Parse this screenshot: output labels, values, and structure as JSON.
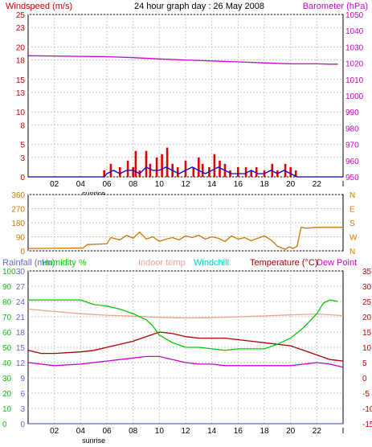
{
  "chart_data": [
    {
      "type": "bar",
      "title": "24 hour graph day : 26 May 2008",
      "ylabel": "Windspeed (m/s)",
      "y2label": "Barometer (hPa)",
      "xlim": [
        0,
        24
      ],
      "ylim": [
        0,
        25
      ],
      "y2lim": [
        950,
        1050
      ],
      "x_ticks": [
        "02",
        "04",
        "06",
        "08",
        "10",
        "12",
        "14",
        "16",
        "18",
        "20",
        "22"
      ],
      "x_tick_values": [
        2,
        4,
        6,
        8,
        10,
        12,
        14,
        16,
        18,
        20,
        22
      ],
      "x_end_label": "I",
      "y_ticks": [
        0,
        3,
        5,
        8,
        10,
        13,
        15,
        18,
        20,
        23,
        25
      ],
      "y2_ticks": [
        950,
        960,
        970,
        980,
        990,
        1000,
        1010,
        1020,
        1030,
        1040,
        1050
      ],
      "grid": true,
      "sunrise_label": "sunrise",
      "sunrise_hour": 5,
      "colors": {
        "gust": "#dd0000",
        "wind": "#0000cc",
        "barometer": "#cc00cc",
        "left_axis": "#cc0000",
        "right_axis": "#cc00cc"
      },
      "series": [
        {
          "name": "Barometer (hPa)",
          "axis": "right",
          "x": [
            0,
            2,
            4,
            6,
            8,
            10,
            12,
            14,
            16,
            18,
            19,
            20,
            21,
            22,
            23,
            23.6
          ],
          "values": [
            1024.6,
            1024.4,
            1024.2,
            1024,
            1023.4,
            1022.6,
            1022,
            1021.4,
            1020.8,
            1020.2,
            1019.9,
            1019.6,
            1019.6,
            1019.6,
            1019.4,
            1019.4
          ]
        },
        {
          "name": "Gust",
          "x": [
            5.8,
            6.3,
            7.0,
            7.6,
            8.0,
            8.2,
            8.5,
            9.0,
            9.3,
            9.8,
            10.2,
            10.6,
            11.0,
            11.4,
            12.0,
            12.6,
            13.0,
            13.3,
            13.8,
            14.2,
            14.6,
            15.0,
            15.4,
            16.0,
            16.6,
            17.0,
            17.4,
            18.0,
            18.6,
            19.0,
            19.6,
            20.0,
            20.4
          ],
          "values": [
            1,
            2,
            1.5,
            2.5,
            1.5,
            4,
            1,
            4,
            2,
            3,
            3.5,
            4.5,
            2,
            1.5,
            2.5,
            1.5,
            3,
            2,
            1.5,
            3.5,
            2.5,
            2,
            1,
            1.5,
            1.5,
            1,
            1.5,
            1,
            2,
            1,
            2,
            1.5,
            1
          ]
        },
        {
          "name": "Wind",
          "x": [
            0,
            5.8,
            6.0,
            6.5,
            7.0,
            7.5,
            8.0,
            8.5,
            9.0,
            9.5,
            10.0,
            10.5,
            11.0,
            11.5,
            12.0,
            12.5,
            13.0,
            13.5,
            14.0,
            14.5,
            15.0,
            15.5,
            16.0,
            16.5,
            17.0,
            17.5,
            18.0,
            18.5,
            19.0,
            19.5,
            20.0,
            20.5,
            21.0,
            24
          ],
          "values": [
            0,
            0,
            0.5,
            1,
            0.5,
            1,
            1,
            0.5,
            1.5,
            1,
            1,
            1.5,
            1,
            0.5,
            1,
            1.5,
            1,
            0.5,
            1,
            1.5,
            1,
            0.5,
            0.5,
            0.5,
            1,
            0.5,
            0.5,
            1,
            0.5,
            1,
            0.5,
            0,
            0,
            0
          ]
        }
      ]
    },
    {
      "type": "line",
      "title": "",
      "ylim": [
        0,
        360
      ],
      "y_ticks": [
        0,
        90,
        180,
        270,
        360
      ],
      "y2_ticks": [
        "N",
        "W",
        "S",
        "E",
        "N"
      ],
      "grid": true,
      "colors": {
        "direction": "#cc7700"
      },
      "series": [
        {
          "name": "Wind direction",
          "x": [
            0,
            4.2,
            4.5,
            6.0,
            6.3,
            7,
            7.5,
            8,
            8.5,
            9,
            9.5,
            10,
            10.5,
            11,
            11.5,
            12,
            12.5,
            13,
            13.5,
            14,
            14.5,
            15,
            15.5,
            16,
            16.5,
            17,
            17.5,
            18,
            18.5,
            19,
            19.3,
            19.6,
            19.9,
            20.2,
            20.5,
            20.8,
            21.2,
            22,
            24
          ],
          "values": [
            15,
            18,
            40,
            45,
            85,
            70,
            100,
            80,
            120,
            75,
            90,
            60,
            75,
            85,
            70,
            95,
            85,
            100,
            75,
            90,
            80,
            60,
            95,
            75,
            85,
            65,
            80,
            95,
            70,
            30,
            20,
            10,
            25,
            15,
            30,
            150,
            145,
            150,
            150
          ]
        }
      ]
    },
    {
      "type": "line",
      "title": "",
      "legend": [
        "Rainfall (mm)",
        "Humidity %",
        "Indoor temp",
        "Windchill",
        "Temperature (°C)",
        "Dew Point"
      ],
      "legend_placement": "top",
      "ylim": [
        -15,
        35
      ],
      "y_ticks": [
        35,
        30,
        25,
        20,
        15,
        10,
        5,
        0,
        -5,
        -10,
        -15
      ],
      "rain_ticks": [
        0,
        3,
        6,
        9,
        12,
        15,
        18,
        21,
        24,
        27,
        30
      ],
      "humidity_ticks": [
        0,
        10,
        20,
        30,
        40,
        50,
        60,
        70,
        80,
        90,
        100
      ],
      "grid": true,
      "colors": {
        "rainfall": "#6666cc",
        "humidity": "#00cc00",
        "indoor": "#e8a590",
        "windchill": "#00cccc",
        "temperature": "#aa0000",
        "dewpoint": "#cc00cc",
        "right_axis": "#cc0000"
      },
      "series": [
        {
          "name": "Indoor temp",
          "x": [
            0,
            2,
            4,
            6,
            8,
            10,
            12,
            14,
            16,
            18,
            20,
            22,
            24
          ],
          "values": [
            22.5,
            21.7,
            21,
            20.5,
            20.2,
            19.8,
            19.6,
            19.7,
            20,
            20.3,
            20.6,
            20.9,
            20.4
          ]
        },
        {
          "name": "Humidity %",
          "axis": "humidity",
          "x": [
            0,
            2,
            4,
            5,
            6,
            7,
            8,
            9,
            9.5,
            10,
            11,
            12,
            13,
            14,
            15,
            16,
            17,
            18,
            19,
            20,
            21,
            22,
            22.5,
            23,
            23.6
          ],
          "values": [
            81,
            81,
            81,
            78,
            77,
            75,
            72,
            68,
            64,
            58,
            53,
            50,
            50,
            49,
            48,
            49,
            49,
            49,
            52,
            56,
            63,
            72,
            79,
            81,
            80
          ]
        },
        {
          "name": "Temperature (°C)",
          "x": [
            0,
            1,
            2,
            4,
            5,
            6,
            7,
            8,
            9,
            10,
            11,
            12,
            13,
            14,
            15,
            16,
            17,
            18,
            19,
            20,
            21,
            22,
            23,
            24
          ],
          "values": [
            9,
            8,
            8,
            8.5,
            9,
            10,
            11,
            12,
            13.5,
            15,
            14.5,
            13.5,
            13,
            13,
            13,
            12.5,
            12,
            11.5,
            11,
            10.5,
            9,
            7.5,
            6,
            5.5
          ]
        },
        {
          "name": "Dew Point",
          "x": [
            0,
            2,
            4,
            6,
            7,
            8,
            9,
            10,
            11,
            12,
            13,
            14,
            15,
            16,
            17,
            18,
            19,
            20,
            21,
            22,
            23,
            24
          ],
          "values": [
            5,
            4,
            4.5,
            5.5,
            6,
            6.5,
            7,
            7,
            6,
            5,
            4.5,
            4.5,
            4,
            4,
            4,
            4,
            4,
            4,
            4.5,
            5,
            4.5,
            3.5
          ]
        },
        {
          "name": "Rainfall (mm)",
          "axis": "rain",
          "x": [
            0,
            24
          ],
          "values": [
            0,
            0
          ]
        }
      ]
    }
  ]
}
